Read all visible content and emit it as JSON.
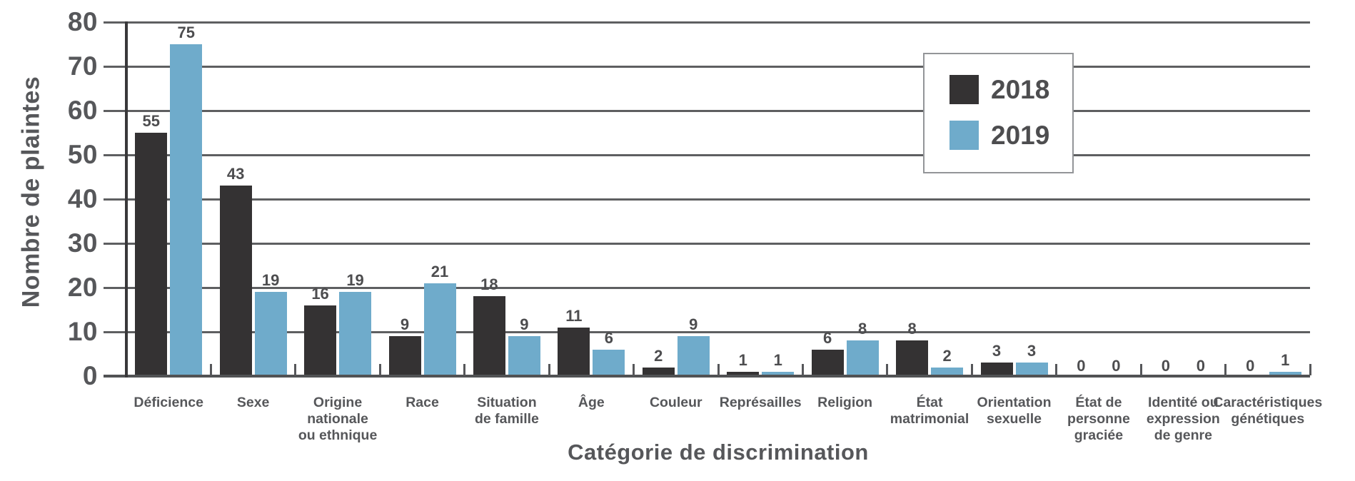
{
  "chart_data": {
    "type": "bar",
    "title": "",
    "xlabel": "Catégorie de discrimination",
    "ylabel": "Nombre de plaintes",
    "ylim": [
      0,
      80
    ],
    "yticks": [
      0,
      10,
      20,
      30,
      40,
      50,
      60,
      70,
      80
    ],
    "grid": true,
    "legend_position": "top-right",
    "categories": [
      "Déficience",
      "Sexe",
      "Origine\nnationale\nou ethnique",
      "Race",
      "Situation\nde famille",
      "Âge",
      "Couleur",
      "Représailles",
      "Religion",
      "État\nmatrimonial",
      "Orientation\nsexuelle",
      "État de\npersonne\ngraciée",
      "Identité ou\nexpression\nde genre",
      "Caractéristiques\ngénétiques"
    ],
    "series": [
      {
        "name": "2018",
        "color": "#343233",
        "values": [
          55,
          43,
          16,
          9,
          18,
          11,
          2,
          1,
          6,
          8,
          3,
          0,
          0,
          0
        ]
      },
      {
        "name": "2019",
        "color": "#6FABCB",
        "values": [
          75,
          19,
          19,
          21,
          9,
          6,
          9,
          1,
          8,
          2,
          3,
          0,
          0,
          1
        ]
      }
    ]
  },
  "colors": {
    "background": "#FFFFFF",
    "gridline": "#5E5F61",
    "axis_line": "#39383A",
    "baseline": "#515254",
    "tick": "#56575A",
    "text": "#56575A",
    "value_label": "#4D4D4F",
    "legend_border": "#939598"
  }
}
